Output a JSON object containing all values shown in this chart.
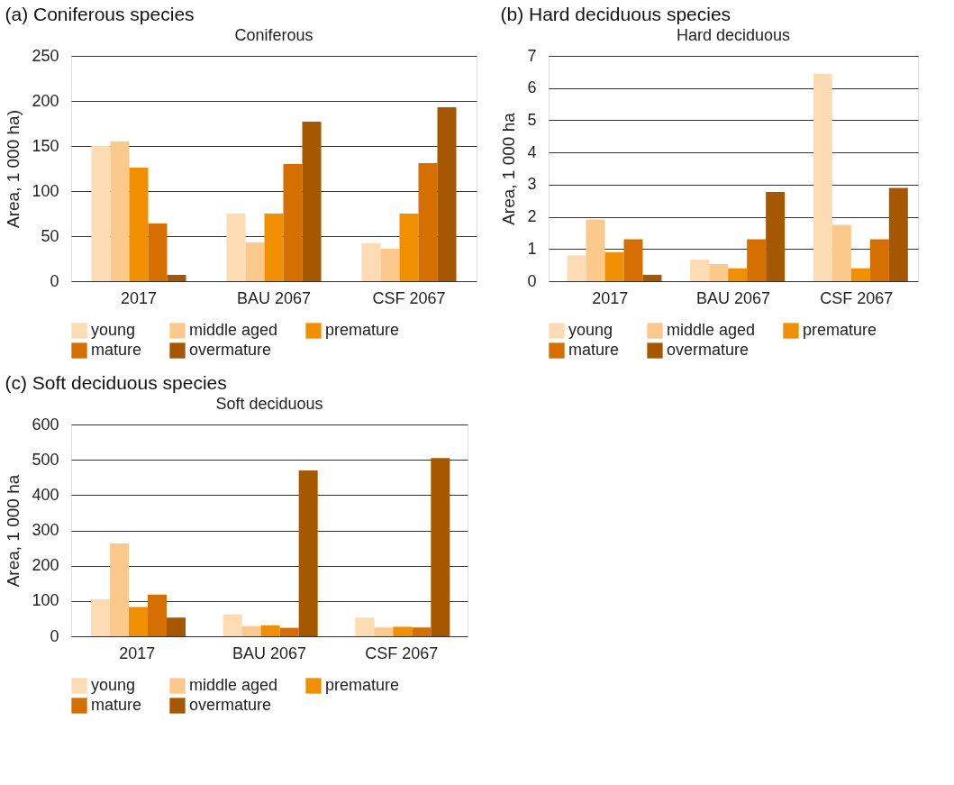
{
  "chart_data": [
    {
      "type": "bar",
      "title": "(a) Coniferous species",
      "subtitle": "Coniferous",
      "ylabel": "Area, 1 000 ha)",
      "categories": [
        "2017",
        "BAU 2067",
        "CSF 2067"
      ],
      "ylim": [
        0,
        250
      ],
      "yticks": [
        0,
        50,
        100,
        150,
        200,
        250
      ],
      "grid": "y",
      "legend": "bottom",
      "series": [
        {
          "name": "young",
          "color": "#fddcb4",
          "values": [
            150,
            75,
            42
          ]
        },
        {
          "name": "middle aged",
          "color": "#fbc98b",
          "values": [
            155,
            43,
            36
          ]
        },
        {
          "name": "premature",
          "color": "#f09000",
          "values": [
            126,
            75,
            75
          ]
        },
        {
          "name": "mature",
          "color": "#d46f00",
          "values": [
            64,
            130,
            131
          ]
        },
        {
          "name": "overmature",
          "color": "#a65800",
          "values": [
            7,
            177,
            193
          ]
        }
      ]
    },
    {
      "type": "bar",
      "title": "(b) Hard deciduous species",
      "subtitle": "Hard deciduous",
      "ylabel": "Area, 1 000 ha",
      "categories": [
        "2017",
        "BAU 2067",
        "CSF 2067"
      ],
      "ylim": [
        0,
        7
      ],
      "yticks": [
        0,
        1,
        2,
        3,
        4,
        5,
        6,
        7
      ],
      "grid": "y",
      "legend": "bottom",
      "series": [
        {
          "name": "young",
          "color": "#fddcb4",
          "values": [
            0.8,
            0.67,
            6.45
          ]
        },
        {
          "name": "middle aged",
          "color": "#fbc98b",
          "values": [
            1.92,
            0.53,
            1.75
          ]
        },
        {
          "name": "premature",
          "color": "#f09000",
          "values": [
            0.9,
            0.4,
            0.4
          ]
        },
        {
          "name": "mature",
          "color": "#d46f00",
          "values": [
            1.3,
            1.3,
            1.3
          ]
        },
        {
          "name": "overmature",
          "color": "#a65800",
          "values": [
            0.2,
            2.77,
            2.9
          ]
        }
      ]
    },
    {
      "type": "bar",
      "title": "(c) Soft deciduous species",
      "subtitle": "Soft deciduous",
      "ylabel": "Area, 1 000 ha",
      "categories": [
        "2017",
        "BAU 2067",
        "CSF 2067"
      ],
      "ylim": [
        0,
        600
      ],
      "yticks": [
        0,
        100,
        200,
        300,
        400,
        500,
        600
      ],
      "grid": "y",
      "legend": "bottom",
      "series": [
        {
          "name": "young",
          "color": "#fddcb4",
          "values": [
            105,
            62,
            53
          ]
        },
        {
          "name": "middle aged",
          "color": "#fbc98b",
          "values": [
            263,
            29,
            25
          ]
        },
        {
          "name": "premature",
          "color": "#f09000",
          "values": [
            83,
            31,
            27
          ]
        },
        {
          "name": "mature",
          "color": "#d46f00",
          "values": [
            118,
            24,
            25
          ]
        },
        {
          "name": "overmature",
          "color": "#a65800",
          "values": [
            53,
            470,
            505
          ]
        }
      ]
    }
  ]
}
